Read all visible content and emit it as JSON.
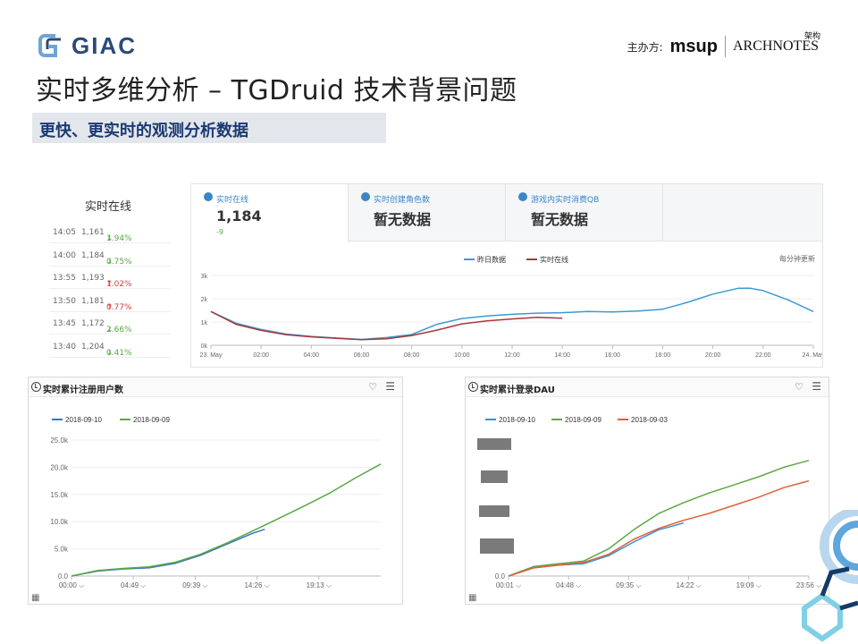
{
  "header": {
    "logo_text": "GIAC",
    "sponsor_label": "主办方:",
    "sponsor_msup": "msup",
    "sponsor_archnotes": "ARCHNOTES",
    "sponsor_archnotes_cn": "架构",
    "page_title": "实时多维分析 – TGDruid  技术背景问题",
    "subtitle": "更快、更实时的观测分析数据"
  },
  "realtime": {
    "title": "实时在线",
    "rows": [
      {
        "time": "14:05",
        "value": "1,161",
        "change": "1.94%",
        "dir": "down"
      },
      {
        "time": "14:00",
        "value": "1,184",
        "change": "0.75%",
        "dir": "down"
      },
      {
        "time": "13:55",
        "value": "1,193",
        "change": "1.02%",
        "dir": "up"
      },
      {
        "time": "13:50",
        "value": "1,181",
        "change": "0.77%",
        "dir": "up"
      },
      {
        "time": "13:45",
        "value": "1,172",
        "change": "2.66%",
        "dir": "down"
      },
      {
        "time": "13:40",
        "value": "1,204",
        "change": "0.41%",
        "dir": "down"
      }
    ]
  },
  "dashboard": {
    "tabs": [
      {
        "label": "实时在线",
        "value": "1,184",
        "delta": "-9"
      },
      {
        "label": "实时创建角色数",
        "value": "暂无数据"
      },
      {
        "label": "游戏内实时消费QB",
        "value": "暂无数据"
      }
    ],
    "update_note": "每分钟更新"
  },
  "chart_data": [
    {
      "type": "line",
      "legend": [
        "昨日数据",
        "实时在线"
      ],
      "legend_position": "top-center",
      "x_ticks": [
        "23. May",
        "02:00",
        "04:00",
        "06:00",
        "08:00",
        "10:00",
        "12:00",
        "14:00",
        "16:00",
        "18:00",
        "20:00",
        "22:00",
        "24. May"
      ],
      "y_ticks": [
        "0k",
        "1k",
        "2k",
        "3k"
      ],
      "ylim": [
        0,
        3000
      ],
      "x_hours": [
        0,
        24
      ],
      "series": [
        {
          "name": "昨日数据",
          "color": "#3c9ad1",
          "x": [
            0,
            1,
            2,
            3,
            4,
            5,
            6,
            7,
            8,
            9,
            10,
            11,
            12,
            13,
            14,
            15,
            16,
            17,
            18,
            19,
            20,
            21,
            21.5,
            22,
            23,
            24
          ],
          "y": [
            1450,
            950,
            680,
            480,
            380,
            310,
            250,
            330,
            460,
            900,
            1150,
            1260,
            1330,
            1380,
            1400,
            1450,
            1430,
            1470,
            1550,
            1850,
            2200,
            2450,
            2450,
            2350,
            1950,
            1450
          ]
        },
        {
          "name": "实时在线",
          "color": "#a8383a",
          "x": [
            0,
            1,
            2,
            3,
            4,
            5,
            6,
            7,
            8,
            9,
            10,
            11,
            12,
            13,
            14
          ],
          "y": [
            1450,
            900,
            640,
            450,
            360,
            300,
            240,
            280,
            420,
            650,
            920,
            1050,
            1130,
            1200,
            1160
          ]
        }
      ]
    },
    {
      "type": "line",
      "title": "实时累计注册用户数",
      "legend": [
        "2018-09-10",
        "2018-09-09"
      ],
      "legend_position": "top-left",
      "x_ticks": [
        "00:00",
        "04:49",
        "09:39",
        "14:26",
        "19:13"
      ],
      "y_ticks": [
        "0.0",
        "5.0k",
        "10.0k",
        "15.0k",
        "20.0k",
        "25.0k"
      ],
      "ylim": [
        0,
        25000
      ],
      "x_hours": [
        0,
        24
      ],
      "series": [
        {
          "name": "2018-09-10",
          "color": "#3a78b8",
          "x": [
            0,
            2,
            4,
            6,
            8,
            10,
            12,
            14,
            15
          ],
          "y": [
            0,
            900,
            1300,
            1500,
            2300,
            3800,
            5800,
            7800,
            8600
          ]
        },
        {
          "name": "2018-09-09",
          "color": "#5aa846",
          "x": [
            0,
            2,
            4,
            6,
            8,
            10,
            12,
            14,
            16,
            18,
            20,
            22,
            24
          ],
          "y": [
            0,
            1000,
            1400,
            1700,
            2500,
            4000,
            6000,
            8200,
            10500,
            12800,
            15200,
            18000,
            20600
          ]
        }
      ]
    },
    {
      "type": "line",
      "title": "实时累计登录DAU",
      "legend": [
        "2018-09-10",
        "2018-09-09",
        "2018-09-03"
      ],
      "legend_position": "top-left",
      "x_ticks": [
        "00:01",
        "04:48",
        "09:35",
        "14:22",
        "19:09",
        "23:56"
      ],
      "y_ticks": [
        "0.0"
      ],
      "ylim": [
        0,
        100
      ],
      "x_hours": [
        0,
        24
      ],
      "series": [
        {
          "name": "2018-09-10",
          "color": "#3a8fd0",
          "x": [
            0,
            2,
            4,
            6,
            8,
            10,
            12,
            14
          ],
          "y": [
            0,
            6,
            8,
            9,
            15,
            25,
            34,
            39
          ]
        },
        {
          "name": "2018-09-09",
          "color": "#5aa846",
          "x": [
            0,
            2,
            4,
            6,
            8,
            10,
            12,
            14,
            16,
            18,
            20,
            22,
            24
          ],
          "y": [
            0,
            7,
            9,
            11,
            20,
            34,
            46,
            54,
            61,
            67,
            73,
            80,
            85
          ]
        },
        {
          "name": "2018-09-03",
          "color": "#e0603a",
          "x": [
            0,
            2,
            4,
            6,
            8,
            10,
            12,
            14,
            16,
            18,
            20,
            22,
            24
          ],
          "y": [
            0,
            6,
            8,
            10,
            16,
            27,
            35,
            41,
            46,
            52,
            58,
            65,
            70
          ]
        }
      ]
    }
  ]
}
